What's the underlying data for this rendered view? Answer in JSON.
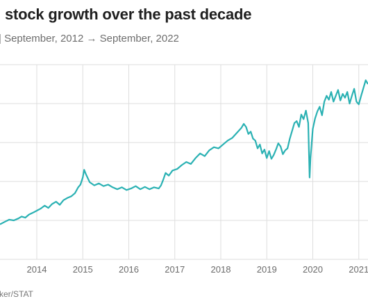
{
  "header": {
    "title": "stock growth over the past decade",
    "subtitle": "| September, 2012 → September, 2022"
  },
  "footer": {
    "source": "ker/STAT"
  },
  "chart_data": {
    "type": "line",
    "title": "stock growth over the past decade",
    "subtitle": "| September, 2012 → September, 2022",
    "xlabel": "",
    "ylabel": "",
    "x_tick_labels": [
      "2014",
      "2015",
      "2016",
      "2017",
      "2018",
      "2019",
      "2020",
      "2021"
    ],
    "xlim": [
      2013.45,
      2021.45
    ],
    "ylim": [
      0,
      5
    ],
    "grid": true,
    "legend": "none",
    "colors": {
      "line": "#2ab1b3",
      "grid": "#dedede",
      "text": "#6a6a6a"
    },
    "series": [
      {
        "values": [
          [
            2013.45,
            0.9
          ],
          [
            2013.55,
            0.96
          ],
          [
            2013.65,
            1.02
          ],
          [
            2013.75,
            1.0
          ],
          [
            2013.85,
            1.05
          ],
          [
            2013.92,
            1.1
          ],
          [
            2014.0,
            1.07
          ],
          [
            2014.08,
            1.15
          ],
          [
            2014.17,
            1.2
          ],
          [
            2014.25,
            1.25
          ],
          [
            2014.33,
            1.3
          ],
          [
            2014.42,
            1.38
          ],
          [
            2014.5,
            1.32
          ],
          [
            2014.58,
            1.42
          ],
          [
            2014.67,
            1.48
          ],
          [
            2014.75,
            1.4
          ],
          [
            2014.83,
            1.52
          ],
          [
            2014.92,
            1.58
          ],
          [
            2015.0,
            1.62
          ],
          [
            2015.08,
            1.7
          ],
          [
            2015.15,
            1.85
          ],
          [
            2015.2,
            1.92
          ],
          [
            2015.25,
            2.1
          ],
          [
            2015.28,
            2.3
          ],
          [
            2015.32,
            2.18
          ],
          [
            2015.4,
            1.98
          ],
          [
            2015.5,
            1.9
          ],
          [
            2015.6,
            1.95
          ],
          [
            2015.7,
            1.88
          ],
          [
            2015.8,
            1.92
          ],
          [
            2015.9,
            1.85
          ],
          [
            2016.0,
            1.8
          ],
          [
            2016.1,
            1.85
          ],
          [
            2016.2,
            1.78
          ],
          [
            2016.3,
            1.82
          ],
          [
            2016.4,
            1.88
          ],
          [
            2016.5,
            1.8
          ],
          [
            2016.6,
            1.86
          ],
          [
            2016.7,
            1.8
          ],
          [
            2016.8,
            1.85
          ],
          [
            2016.9,
            1.82
          ],
          [
            2016.95,
            1.9
          ],
          [
            2017.0,
            2.05
          ],
          [
            2017.05,
            2.22
          ],
          [
            2017.12,
            2.15
          ],
          [
            2017.2,
            2.28
          ],
          [
            2017.3,
            2.32
          ],
          [
            2017.4,
            2.42
          ],
          [
            2017.5,
            2.5
          ],
          [
            2017.6,
            2.45
          ],
          [
            2017.7,
            2.6
          ],
          [
            2017.8,
            2.72
          ],
          [
            2017.9,
            2.65
          ],
          [
            2018.0,
            2.8
          ],
          [
            2018.1,
            2.88
          ],
          [
            2018.2,
            2.85
          ],
          [
            2018.3,
            2.95
          ],
          [
            2018.4,
            3.05
          ],
          [
            2018.5,
            3.12
          ],
          [
            2018.6,
            3.25
          ],
          [
            2018.7,
            3.38
          ],
          [
            2018.75,
            3.48
          ],
          [
            2018.8,
            3.4
          ],
          [
            2018.85,
            3.22
          ],
          [
            2018.9,
            3.28
          ],
          [
            2018.95,
            3.1
          ],
          [
            2019.0,
            3.05
          ],
          [
            2019.05,
            2.85
          ],
          [
            2019.1,
            2.95
          ],
          [
            2019.15,
            2.72
          ],
          [
            2019.2,
            2.82
          ],
          [
            2019.25,
            2.6
          ],
          [
            2019.3,
            2.78
          ],
          [
            2019.35,
            2.58
          ],
          [
            2019.4,
            2.68
          ],
          [
            2019.45,
            2.82
          ],
          [
            2019.5,
            2.98
          ],
          [
            2019.55,
            2.9
          ],
          [
            2019.6,
            2.7
          ],
          [
            2019.65,
            2.8
          ],
          [
            2019.7,
            2.85
          ],
          [
            2019.75,
            3.1
          ],
          [
            2019.8,
            3.3
          ],
          [
            2019.85,
            3.5
          ],
          [
            2019.9,
            3.55
          ],
          [
            2019.95,
            3.4
          ],
          [
            2020.0,
            3.72
          ],
          [
            2020.05,
            3.6
          ],
          [
            2020.1,
            3.82
          ],
          [
            2020.15,
            3.5
          ],
          [
            2020.18,
            2.1
          ],
          [
            2020.2,
            2.6
          ],
          [
            2020.25,
            3.35
          ],
          [
            2020.3,
            3.62
          ],
          [
            2020.35,
            3.8
          ],
          [
            2020.4,
            3.92
          ],
          [
            2020.45,
            3.7
          ],
          [
            2020.5,
            4.05
          ],
          [
            2020.55,
            4.2
          ],
          [
            2020.6,
            4.1
          ],
          [
            2020.65,
            4.3
          ],
          [
            2020.7,
            4.05
          ],
          [
            2020.75,
            4.2
          ],
          [
            2020.8,
            4.35
          ],
          [
            2020.85,
            4.08
          ],
          [
            2020.9,
            4.25
          ],
          [
            2020.95,
            4.15
          ],
          [
            2021.0,
            4.3
          ],
          [
            2021.05,
            4.0
          ],
          [
            2021.1,
            4.2
          ],
          [
            2021.15,
            4.38
          ],
          [
            2021.2,
            4.05
          ],
          [
            2021.25,
            3.98
          ],
          [
            2021.3,
            4.2
          ],
          [
            2021.35,
            4.4
          ],
          [
            2021.4,
            4.6
          ],
          [
            2021.45,
            4.5
          ]
        ]
      }
    ]
  }
}
